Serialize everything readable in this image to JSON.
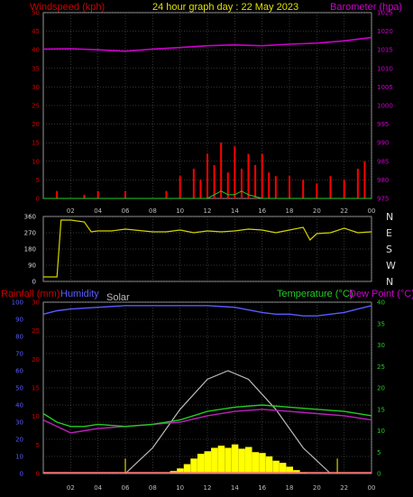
{
  "header": {
    "title": "24 hour graph day : 22 May 2023",
    "left_axis": "Windspeed (kph)",
    "right_axis": "Barometer (hpa)"
  },
  "bottom_header": {
    "rain": "Rainfall (mm)",
    "humidity": "Humidity",
    "solar": "Solar",
    "temperature": "Temperature (°C)",
    "dewpoint": "Dew Point (°C)"
  },
  "colors": {
    "wind": "#ff0000",
    "gust": "#ff0000",
    "barometer": "#cc00cc",
    "direction": "#d4d400",
    "humidity": "#5a5aff",
    "solar": "#ffff00",
    "solar_curve": "#bbbbbb",
    "temperature": "#22cc22",
    "dewpoint": "#bb22bb",
    "grid": "#666666",
    "axis_text": "#cc0000"
  },
  "chart_data": [
    {
      "type": "line",
      "title": "24 hour graph day : 22 May 2023",
      "ylabel": "Windspeed (kph)",
      "y2label": "Barometer (hpa)",
      "x_ticks": [
        "02",
        "04",
        "06",
        "08",
        "10",
        "12",
        "14",
        "16",
        "18",
        "20",
        "22",
        "00"
      ],
      "ylim": [
        0,
        50
      ],
      "y_ticks": [
        0,
        5,
        10,
        15,
        20,
        25,
        30,
        35,
        40,
        45,
        50
      ],
      "y2lim": [
        975,
        1025
      ],
      "y2_ticks": [
        975,
        980,
        985,
        990,
        995,
        1000,
        1005,
        1010,
        1015,
        1020,
        1025
      ],
      "grid": true,
      "series": [
        {
          "name": "Barometer (hpa)",
          "axis": "right",
          "x": [
            0,
            2,
            4,
            6,
            8,
            10,
            12,
            14,
            16,
            18,
            20,
            22,
            24
          ],
          "values": [
            1015.2,
            1015.3,
            1015.0,
            1014.6,
            1015.2,
            1015.6,
            1016.1,
            1016.3,
            1016.1,
            1016.5,
            1016.8,
            1017.4,
            1018.3
          ]
        },
        {
          "name": "Wind gust (kph)",
          "axis": "left",
          "x": [
            0,
            1,
            3,
            4,
            5,
            6,
            9,
            10,
            11,
            11.5,
            12,
            12.5,
            13,
            13.5,
            14,
            14.5,
            15,
            15.5,
            16,
            16.5,
            17,
            18,
            19,
            20,
            21,
            22,
            23,
            23.5
          ],
          "values": [
            0,
            2,
            1,
            2,
            0,
            2,
            2,
            6,
            8,
            5,
            12,
            9,
            15,
            7,
            14,
            8,
            12,
            9,
            12,
            7,
            6,
            6,
            5,
            4,
            6,
            5,
            8,
            10
          ]
        },
        {
          "name": "Wind speed (kph)",
          "axis": "left",
          "x": [
            0,
            6,
            10,
            12,
            12.5,
            13,
            13.5,
            14,
            14.5,
            15,
            16,
            17,
            18,
            20,
            22,
            24
          ],
          "values": [
            0,
            0,
            0,
            0,
            1,
            2,
            1,
            1,
            2,
            1,
            0,
            0,
            0,
            0,
            0,
            0
          ]
        }
      ]
    },
    {
      "type": "line",
      "x_ticks": [
        "02",
        "04",
        "06",
        "08",
        "10",
        "12",
        "14",
        "16",
        "18",
        "20",
        "22",
        "00"
      ],
      "ylim": [
        0,
        360
      ],
      "y_ticks": [
        0,
        90,
        180,
        270,
        360
      ],
      "y2_ticks": [
        "N",
        "W",
        "S",
        "E",
        "N"
      ],
      "series": [
        {
          "name": "Wind direction (°)",
          "x": [
            0,
            1,
            1.3,
            2,
            3,
            3.5,
            4,
            5,
            6,
            8,
            9,
            10,
            11,
            12,
            13,
            14,
            15,
            16,
            17,
            18,
            19,
            19.5,
            20,
            21,
            22,
            23,
            24
          ],
          "values": [
            25,
            25,
            340,
            340,
            330,
            275,
            280,
            280,
            290,
            275,
            275,
            285,
            270,
            280,
            275,
            280,
            290,
            285,
            270,
            285,
            300,
            230,
            265,
            270,
            295,
            270,
            275
          ]
        }
      ]
    },
    {
      "type": "line",
      "xlabel": "",
      "ylabel": "Rainfall (mm)",
      "y2label": "Temperature (°C)",
      "x_ticks": [
        "02",
        "04",
        "06",
        "08",
        "10",
        "12",
        "14",
        "16",
        "18",
        "20",
        "22",
        "00"
      ],
      "ylim": [
        0,
        100
      ],
      "y_ticks": [
        0,
        10,
        20,
        30,
        40,
        50,
        60,
        70,
        80,
        90,
        100
      ],
      "rain_ticks": [
        0,
        5,
        10,
        15,
        20,
        25,
        30
      ],
      "y2lim": [
        0,
        40
      ],
      "y2_ticks": [
        0,
        5,
        10,
        15,
        20,
        25,
        30,
        35,
        40
      ],
      "grid": true,
      "series": [
        {
          "name": "Humidity",
          "axis": "left",
          "x": [
            0,
            1,
            2,
            4,
            6,
            8,
            10,
            12,
            14,
            16,
            17,
            18,
            19,
            20,
            21,
            22,
            23,
            24
          ],
          "values": [
            93,
            95,
            96,
            97,
            98,
            98,
            98,
            98,
            97,
            94,
            93,
            93,
            92,
            92,
            93,
            94,
            96,
            98
          ]
        },
        {
          "name": "Temperature (°C)",
          "axis": "right",
          "x": [
            0,
            1,
            2,
            3,
            4,
            6,
            8,
            10,
            12,
            14,
            16,
            18,
            20,
            22,
            24
          ],
          "values": [
            14,
            12,
            11,
            11,
            11.5,
            11,
            11.5,
            12.5,
            14.5,
            15.5,
            16,
            15.5,
            15,
            14.5,
            13.5
          ]
        },
        {
          "name": "Dew Point (°C)",
          "axis": "right",
          "x": [
            0,
            1,
            2,
            3,
            4,
            6,
            8,
            10,
            12,
            14,
            16,
            18,
            20,
            22,
            24
          ],
          "values": [
            12.5,
            11,
            9.5,
            10,
            10.5,
            11,
            11.5,
            12,
            13.5,
            14.5,
            15,
            14.5,
            14,
            13.5,
            12.5
          ]
        },
        {
          "name": "Solar",
          "axis": "right",
          "kind": "bars",
          "x": [
            9.5,
            10,
            10.5,
            11,
            11.5,
            12,
            12.5,
            13,
            13.5,
            14,
            14.5,
            15,
            15.5,
            16,
            16.5,
            17,
            17.5,
            18,
            18.5,
            19
          ],
          "values": [
            0.6,
            1.2,
            2.2,
            3.5,
            4.6,
            5.2,
            6.0,
            6.5,
            6.0,
            6.8,
            5.8,
            6.2,
            5.0,
            4.8,
            4.0,
            3.0,
            2.5,
            1.6,
            0.8,
            0.3
          ]
        },
        {
          "name": "Solar (theoretical)",
          "axis": "right",
          "kind": "curve",
          "x": [
            6,
            8,
            10,
            12,
            13.5,
            15,
            17,
            19,
            21
          ],
          "values": [
            0,
            6,
            15,
            22,
            24,
            22,
            15,
            6,
            0
          ]
        }
      ]
    }
  ]
}
